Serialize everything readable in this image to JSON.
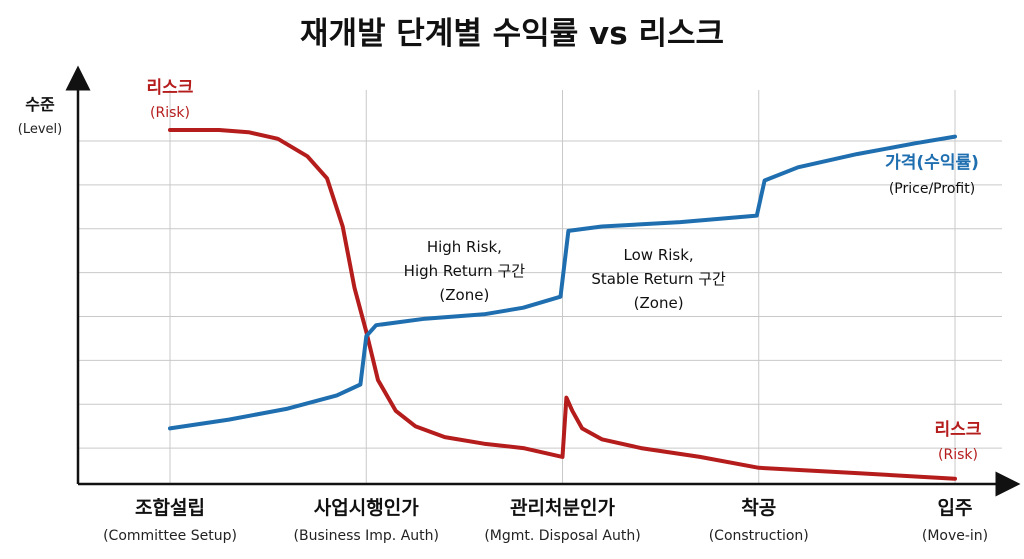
{
  "chart_data": {
    "type": "line",
    "title": "재개발 단계별 수익률 vs 리스크",
    "ylabel": "수준",
    "ylabel_en": "(Level)",
    "ylim": [
      0,
      8
    ],
    "grid": true,
    "categories": [
      {
        "label": "조합설립",
        "sub": "(Committee Setup)"
      },
      {
        "label": "사업시행인가",
        "sub": "(Business Imp. Auth)"
      },
      {
        "label": "관리처분인가",
        "sub": "(Mgmt. Disposal Auth)"
      },
      {
        "label": "착공",
        "sub": "(Construction)"
      },
      {
        "label": "입주",
        "sub": "(Move-in)"
      }
    ],
    "series": [
      {
        "name": "리스크",
        "name_en": "(Risk)",
        "color": "#b51c1c",
        "label_position": "start and end",
        "points": [
          [
            0,
            8.0
          ],
          [
            0.25,
            8.0
          ],
          [
            0.4,
            7.95
          ],
          [
            0.55,
            7.8
          ],
          [
            0.7,
            7.4
          ],
          [
            0.8,
            6.9
          ],
          [
            0.88,
            5.8
          ],
          [
            0.94,
            4.4
          ],
          [
            1.0,
            3.4
          ],
          [
            1.06,
            2.3
          ],
          [
            1.15,
            1.6
          ],
          [
            1.25,
            1.25
          ],
          [
            1.4,
            1.0
          ],
          [
            1.6,
            0.85
          ],
          [
            1.8,
            0.75
          ],
          [
            2.0,
            0.55
          ],
          [
            2.02,
            1.9
          ],
          [
            2.05,
            1.6
          ],
          [
            2.1,
            1.2
          ],
          [
            2.2,
            0.95
          ],
          [
            2.4,
            0.75
          ],
          [
            2.7,
            0.55
          ],
          [
            3.0,
            0.3
          ],
          [
            3.5,
            0.18
          ],
          [
            4.0,
            0.05
          ]
        ]
      },
      {
        "name": "가격(수익률)",
        "name_en": "(Price/Profit)",
        "color": "#1f6fb0",
        "label_position": "end",
        "points": [
          [
            0,
            1.2
          ],
          [
            0.3,
            1.4
          ],
          [
            0.6,
            1.65
          ],
          [
            0.85,
            1.95
          ],
          [
            0.97,
            2.2
          ],
          [
            1.0,
            3.3
          ],
          [
            1.05,
            3.55
          ],
          [
            1.3,
            3.7
          ],
          [
            1.6,
            3.8
          ],
          [
            1.8,
            3.95
          ],
          [
            1.99,
            4.2
          ],
          [
            2.03,
            5.7
          ],
          [
            2.2,
            5.8
          ],
          [
            2.6,
            5.9
          ],
          [
            2.99,
            6.05
          ],
          [
            3.03,
            6.85
          ],
          [
            3.2,
            7.15
          ],
          [
            3.5,
            7.45
          ],
          [
            3.8,
            7.7
          ],
          [
            4.0,
            7.85
          ]
        ]
      }
    ],
    "annotations": [
      {
        "lines": [
          "High Risk,",
          "High Return 구간",
          "(Zone)"
        ],
        "between": [
          1,
          2
        ]
      },
      {
        "lines": [
          "Low Risk,",
          "Stable Return 구간",
          "(Zone)"
        ],
        "between": [
          2,
          3
        ]
      }
    ]
  }
}
